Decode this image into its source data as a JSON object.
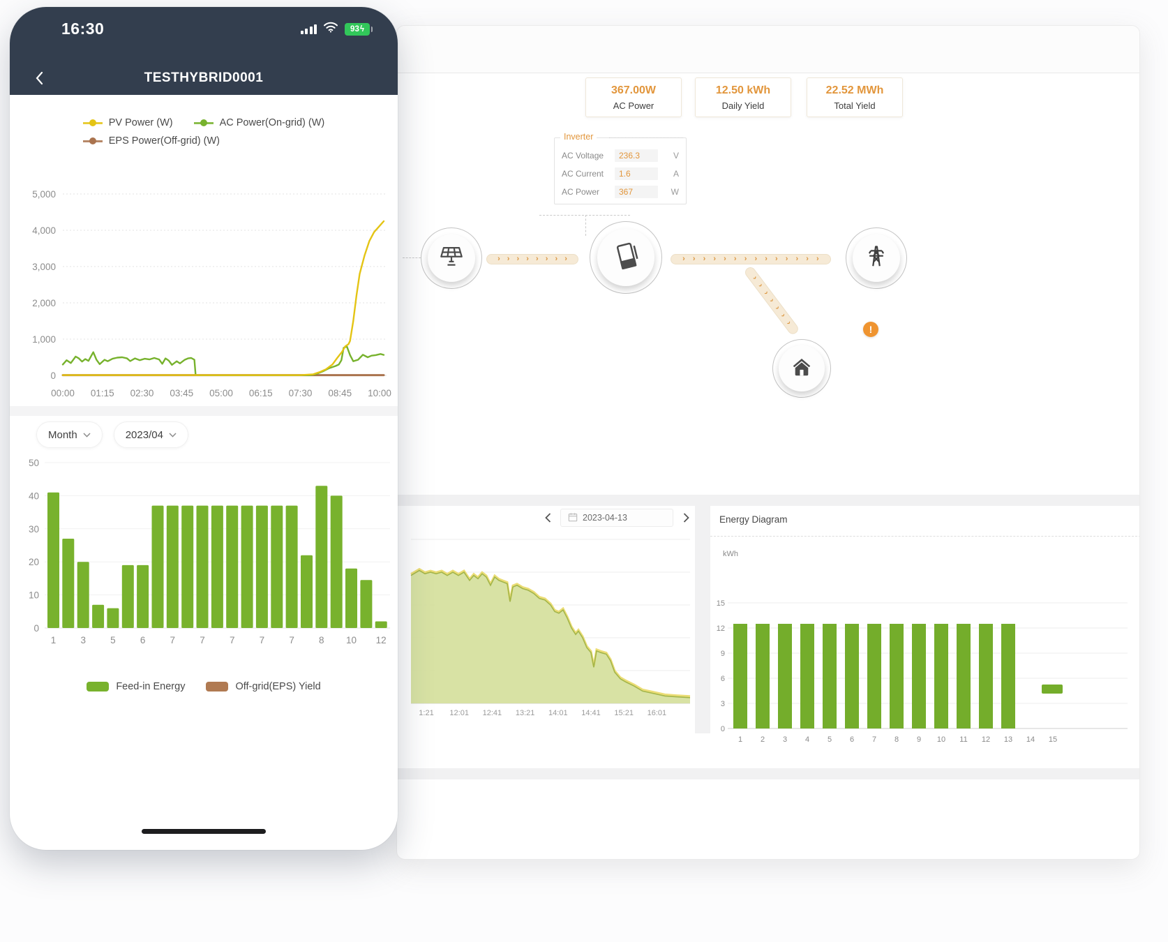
{
  "phone": {
    "status_bar": {
      "time": "16:30",
      "battery_level": "93",
      "charging_glyph": "ϟ"
    },
    "nav_bar": {
      "title": "TESTHYBRID0001"
    },
    "power_chart": {
      "type": "line",
      "y_max": 5000,
      "y_ticks": [
        "0",
        "1,000",
        "2,000",
        "3,000",
        "4,000",
        "5,000"
      ],
      "x_ticks": [
        "00:00",
        "01:15",
        "02:30",
        "03:45",
        "05:00",
        "06:15",
        "07:30",
        "08:45",
        "10:00"
      ],
      "grid": true,
      "legend_position": "top",
      "series": [
        {
          "name": "PV Power (W)",
          "color": "#e4c414",
          "points": [
            [
              0,
              8
            ],
            [
              0.74,
              8
            ],
            [
              0.78,
              30
            ],
            [
              0.8,
              90
            ],
            [
              0.82,
              170
            ],
            [
              0.84,
              300
            ],
            [
              0.855,
              480
            ],
            [
              0.87,
              650
            ],
            [
              0.88,
              800
            ],
            [
              0.89,
              860
            ],
            [
              0.895,
              950
            ],
            [
              0.905,
              1500
            ],
            [
              0.915,
              2200
            ],
            [
              0.925,
              2800
            ],
            [
              0.94,
              3300
            ],
            [
              0.955,
              3700
            ],
            [
              0.97,
              3950
            ],
            [
              0.985,
              4100
            ],
            [
              1,
              4250
            ]
          ]
        },
        {
          "name": "AC Power(On-grid) (W)",
          "color": "#77b22d",
          "points": [
            [
              0,
              300
            ],
            [
              0.012,
              420
            ],
            [
              0.025,
              340
            ],
            [
              0.04,
              520
            ],
            [
              0.05,
              470
            ],
            [
              0.06,
              380
            ],
            [
              0.07,
              450
            ],
            [
              0.08,
              400
            ],
            [
              0.095,
              640
            ],
            [
              0.105,
              430
            ],
            [
              0.115,
              310
            ],
            [
              0.13,
              430
            ],
            [
              0.14,
              390
            ],
            [
              0.155,
              460
            ],
            [
              0.17,
              490
            ],
            [
              0.185,
              500
            ],
            [
              0.2,
              470
            ],
            [
              0.21,
              395
            ],
            [
              0.225,
              470
            ],
            [
              0.24,
              420
            ],
            [
              0.255,
              460
            ],
            [
              0.27,
              440
            ],
            [
              0.285,
              480
            ],
            [
              0.3,
              440
            ],
            [
              0.31,
              320
            ],
            [
              0.32,
              470
            ],
            [
              0.33,
              410
            ],
            [
              0.34,
              290
            ],
            [
              0.355,
              390
            ],
            [
              0.365,
              330
            ],
            [
              0.38,
              430
            ],
            [
              0.39,
              470
            ],
            [
              0.4,
              480
            ],
            [
              0.41,
              430
            ],
            [
              0.414,
              5
            ],
            [
              0.77,
              5
            ],
            [
              0.79,
              40
            ],
            [
              0.81,
              110
            ],
            [
              0.83,
              200
            ],
            [
              0.85,
              260
            ],
            [
              0.86,
              300
            ],
            [
              0.868,
              420
            ],
            [
              0.875,
              760
            ],
            [
              0.885,
              800
            ],
            [
              0.895,
              560
            ],
            [
              0.905,
              390
            ],
            [
              0.92,
              430
            ],
            [
              0.935,
              570
            ],
            [
              0.95,
              500
            ],
            [
              0.962,
              545
            ],
            [
              0.975,
              560
            ],
            [
              0.99,
              590
            ],
            [
              1,
              565
            ]
          ]
        },
        {
          "name": "EPS Power(Off-grid) (W)",
          "color": "#aa734e",
          "points": [
            [
              0,
              8
            ],
            [
              1,
              8
            ]
          ]
        }
      ]
    },
    "period_selector": {
      "mode_label": "Month",
      "value_label": "2023/04"
    },
    "yield_chart": {
      "type": "bar",
      "y_max": 50,
      "y_ticks": [
        "0",
        "10",
        "20",
        "30",
        "40",
        "50"
      ],
      "bar_color": "#78b22d",
      "values": [
        41,
        27,
        20,
        7,
        6,
        19,
        19,
        37,
        37,
        37,
        37,
        37,
        37,
        37,
        37,
        37,
        37,
        22,
        43,
        40,
        18,
        14.5,
        2
      ],
      "x_tick_labels": [
        "1",
        "3",
        "5",
        "6",
        "7",
        "7",
        "7",
        "7",
        "7",
        "8",
        "10",
        "12"
      ],
      "legend": [
        {
          "label": "Feed-in Energy",
          "color": "#78b22d"
        },
        {
          "label": "Off-grid(EPS) Yield",
          "color": "#b07a52"
        }
      ]
    }
  },
  "desktop": {
    "stats": [
      {
        "value": "367.00W",
        "label": "AC Power"
      },
      {
        "value": "12.50 kWh",
        "label": "Daily Yield"
      },
      {
        "value": "22.52 MWh",
        "label": "Total Yield"
      }
    ],
    "inverter_panel": {
      "title": "Inverter",
      "rows": [
        {
          "label": "AC Voltage",
          "value": "236.3",
          "unit": "V"
        },
        {
          "label": "AC Current",
          "value": "1.6",
          "unit": "A"
        },
        {
          "label": "AC Power",
          "value": "367",
          "unit": "W"
        }
      ]
    },
    "warning_mark": "!",
    "day_chart": {
      "type": "area",
      "date_value": "2023-04-13",
      "fill": "#d6e09f",
      "stroke_top": "#e9d967",
      "stroke_main": "#a3b54a",
      "x_ticks": [
        "1:21",
        "12:01",
        "12:41",
        "13:21",
        "14:01",
        "14:41",
        "15:21",
        "16:01"
      ],
      "points": [
        [
          0,
          0.78
        ],
        [
          0.03,
          0.81
        ],
        [
          0.05,
          0.79
        ],
        [
          0.07,
          0.8
        ],
        [
          0.09,
          0.79
        ],
        [
          0.11,
          0.8
        ],
        [
          0.13,
          0.78
        ],
        [
          0.15,
          0.8
        ],
        [
          0.17,
          0.78
        ],
        [
          0.19,
          0.8
        ],
        [
          0.21,
          0.75
        ],
        [
          0.225,
          0.78
        ],
        [
          0.24,
          0.76
        ],
        [
          0.255,
          0.79
        ],
        [
          0.27,
          0.77
        ],
        [
          0.285,
          0.72
        ],
        [
          0.3,
          0.77
        ],
        [
          0.315,
          0.75
        ],
        [
          0.33,
          0.74
        ],
        [
          0.345,
          0.73
        ],
        [
          0.355,
          0.62
        ],
        [
          0.365,
          0.71
        ],
        [
          0.38,
          0.72
        ],
        [
          0.4,
          0.7
        ],
        [
          0.42,
          0.69
        ],
        [
          0.44,
          0.67
        ],
        [
          0.46,
          0.64
        ],
        [
          0.48,
          0.63
        ],
        [
          0.5,
          0.6
        ],
        [
          0.515,
          0.56
        ],
        [
          0.53,
          0.55
        ],
        [
          0.545,
          0.57
        ],
        [
          0.56,
          0.52
        ],
        [
          0.575,
          0.46
        ],
        [
          0.59,
          0.42
        ],
        [
          0.6,
          0.44
        ],
        [
          0.615,
          0.4
        ],
        [
          0.63,
          0.34
        ],
        [
          0.645,
          0.31
        ],
        [
          0.655,
          0.22
        ],
        [
          0.665,
          0.32
        ],
        [
          0.68,
          0.31
        ],
        [
          0.7,
          0.3
        ],
        [
          0.715,
          0.26
        ],
        [
          0.73,
          0.19
        ],
        [
          0.75,
          0.15
        ],
        [
          0.77,
          0.13
        ],
        [
          0.8,
          0.105
        ],
        [
          0.83,
          0.075
        ],
        [
          0.87,
          0.06
        ],
        [
          0.91,
          0.045
        ],
        [
          0.95,
          0.04
        ],
        [
          1,
          0.035
        ]
      ]
    },
    "energy_diagram": {
      "title": "Energy Diagram",
      "unit": "kWh",
      "type": "bar",
      "y_max": 15,
      "y_ticks": [
        "0",
        "3",
        "6",
        "9",
        "12",
        "15"
      ],
      "bar_color": "#74ad2b",
      "values": [
        12.5,
        12.5,
        12.5,
        12.5,
        12.5,
        12.5,
        12.5,
        12.5,
        12.5,
        12.5,
        12.5,
        12.5,
        12.5
      ],
      "x_ticks": [
        "1",
        "2",
        "3",
        "4",
        "5",
        "6",
        "7",
        "8",
        "9",
        "10",
        "11",
        "12",
        "13",
        "14",
        "15"
      ],
      "legend_color": "#74ad2b"
    }
  }
}
